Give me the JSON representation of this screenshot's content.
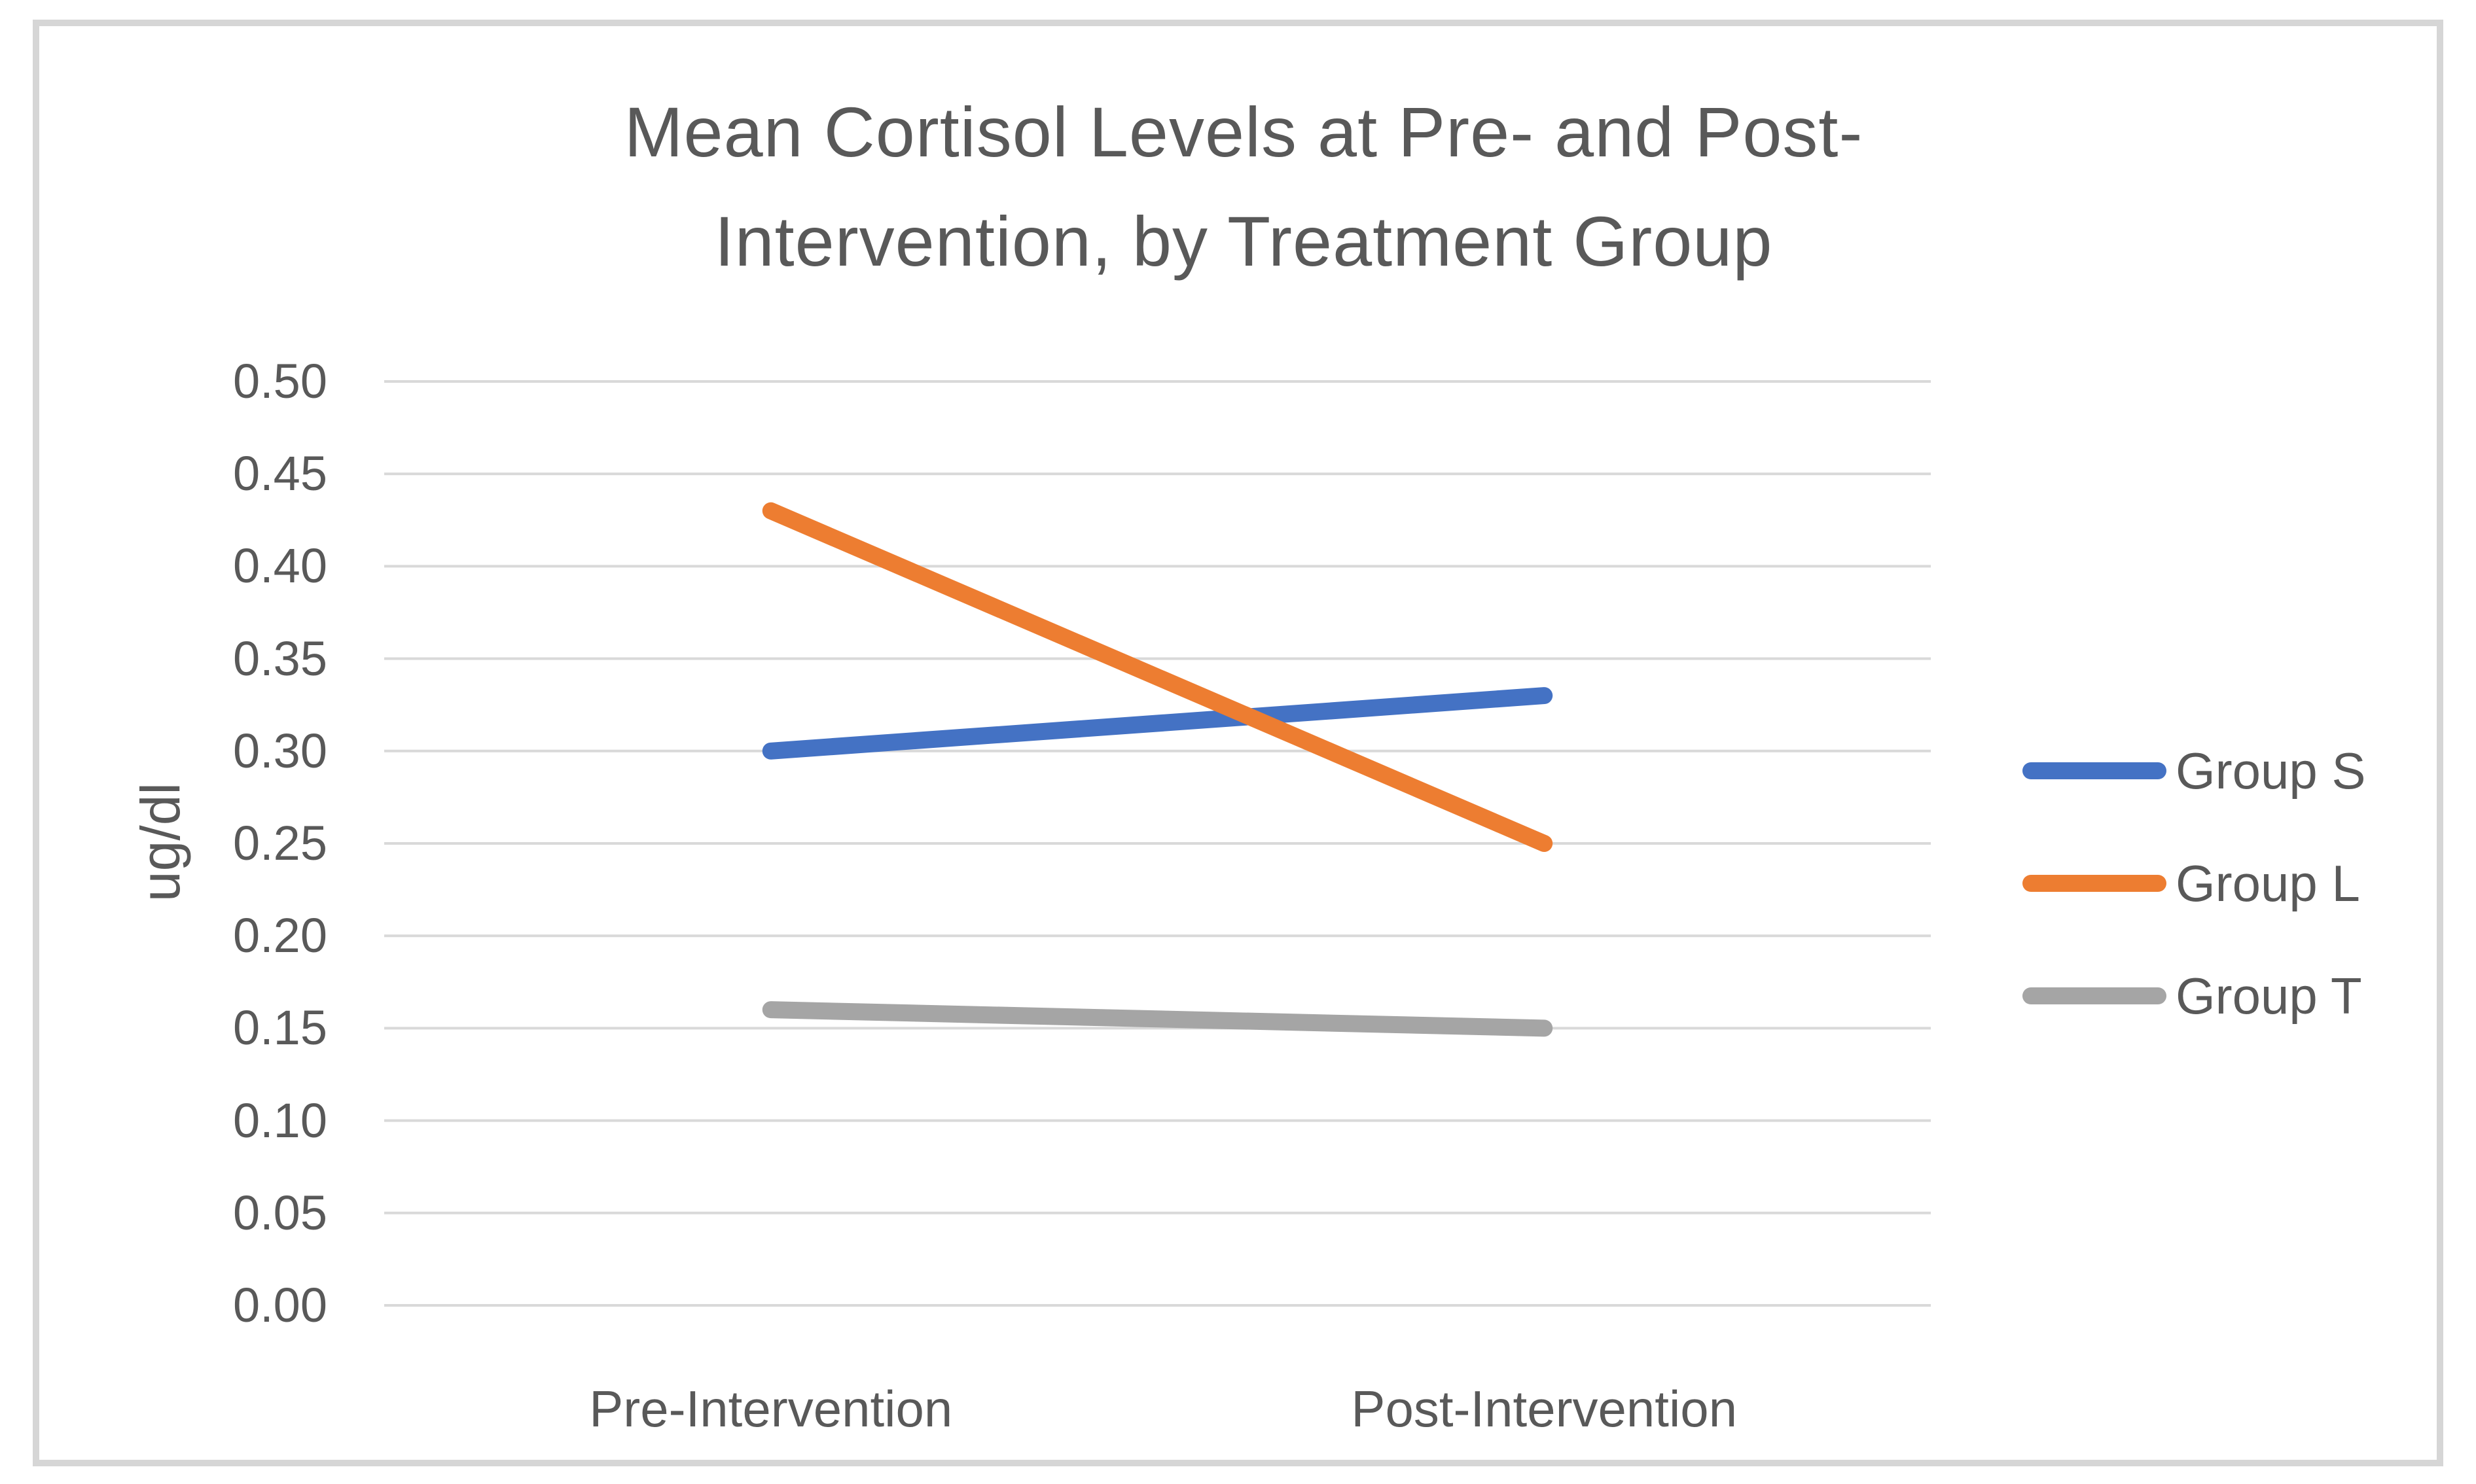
{
  "chart_data": {
    "type": "line",
    "title": "Mean Cortisol Levels at Pre- and Post-Intervention, by Treatment Group",
    "title_lines": [
      "Mean Cortisol Levels at Pre- and Post-",
      "Intervention, by Treatment Group"
    ],
    "ylabel": "ug/dl",
    "xlabel": "",
    "categories": [
      "Pre-Intervention",
      "Post-Intervention"
    ],
    "series": [
      {
        "name": "Group S",
        "values": [
          0.3,
          0.33
        ],
        "color": "#4472C4"
      },
      {
        "name": "Group L",
        "values": [
          0.43,
          0.25
        ],
        "color": "#ED7D31"
      },
      {
        "name": "Group T",
        "values": [
          0.16,
          0.15
        ],
        "color": "#A5A5A5"
      }
    ],
    "ylim": [
      0.0,
      0.5
    ],
    "y_tick_step": 0.05,
    "y_ticks": [
      "0.00",
      "0.05",
      "0.10",
      "0.15",
      "0.20",
      "0.25",
      "0.30",
      "0.35",
      "0.40",
      "0.45",
      "0.50"
    ],
    "grid": "horizontal",
    "legend_position": "right",
    "text_color": "#595959",
    "gridline_color": "#D9D9D9",
    "frame_color": "#D6D6D6",
    "background": "#FFFFFF"
  }
}
